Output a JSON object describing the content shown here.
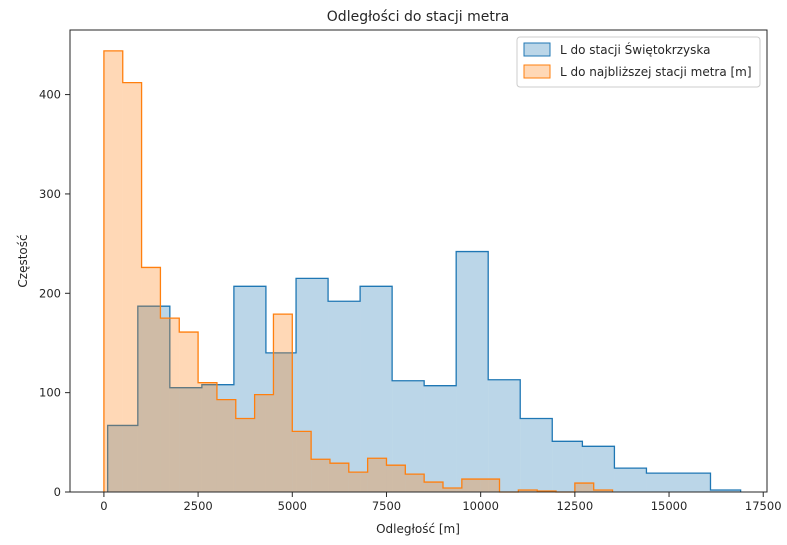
{
  "chart_data": {
    "type": "histogram",
    "title": "Odległości do stacji metra",
    "xlabel": "Odległość [m]",
    "ylabel": "Częstość",
    "xlim": [
      -900,
      17600
    ],
    "ylim": [
      0,
      465
    ],
    "xticks": [
      0,
      2500,
      5000,
      7500,
      10000,
      12500,
      15000,
      17500
    ],
    "xtick_labels": [
      "0",
      "2500",
      "5000",
      "7500",
      "10000",
      "12500",
      "15000",
      "17500"
    ],
    "yticks": [
      0,
      100,
      200,
      300,
      400
    ],
    "ytick_labels": [
      "0",
      "100",
      "200",
      "300",
      "400"
    ],
    "grid": false,
    "legend": "top-right",
    "series": [
      {
        "name": "L do stacji Świętokrzyska",
        "stroke": "#1f77b4",
        "fill": "#1f77b4",
        "fill_opacity": 0.3,
        "edges": [
          100,
          900,
          1750,
          2600,
          3450,
          4300,
          5100,
          5950,
          6800,
          7650,
          8500,
          9350,
          10200,
          11050,
          11900,
          12700,
          13550,
          14400,
          15250,
          16100,
          16900
        ],
        "counts": [
          67,
          187,
          105,
          108,
          207,
          140,
          215,
          192,
          207,
          112,
          107,
          242,
          113,
          74,
          51,
          46,
          24,
          19,
          19,
          2
        ]
      },
      {
        "name": "L do najbliższej stacji metra [m]",
        "stroke": "#ff7f0e",
        "fill": "#ff7f0e",
        "fill_opacity": 0.3,
        "edges": [
          0,
          500,
          1000,
          1500,
          2000,
          2500,
          3000,
          3500,
          4000,
          4500,
          5000,
          5500,
          6000,
          6500,
          7000,
          7500,
          8000,
          8500,
          9000,
          9500,
          10000,
          10500,
          11000,
          11500,
          12000,
          12500,
          13000,
          13500
        ],
        "counts": [
          444,
          412,
          226,
          175,
          161,
          110,
          93,
          74,
          98,
          179,
          61,
          33,
          29,
          20,
          34,
          27,
          18,
          10,
          4,
          13,
          13,
          0,
          2,
          1,
          0,
          9,
          2
        ]
      }
    ]
  }
}
